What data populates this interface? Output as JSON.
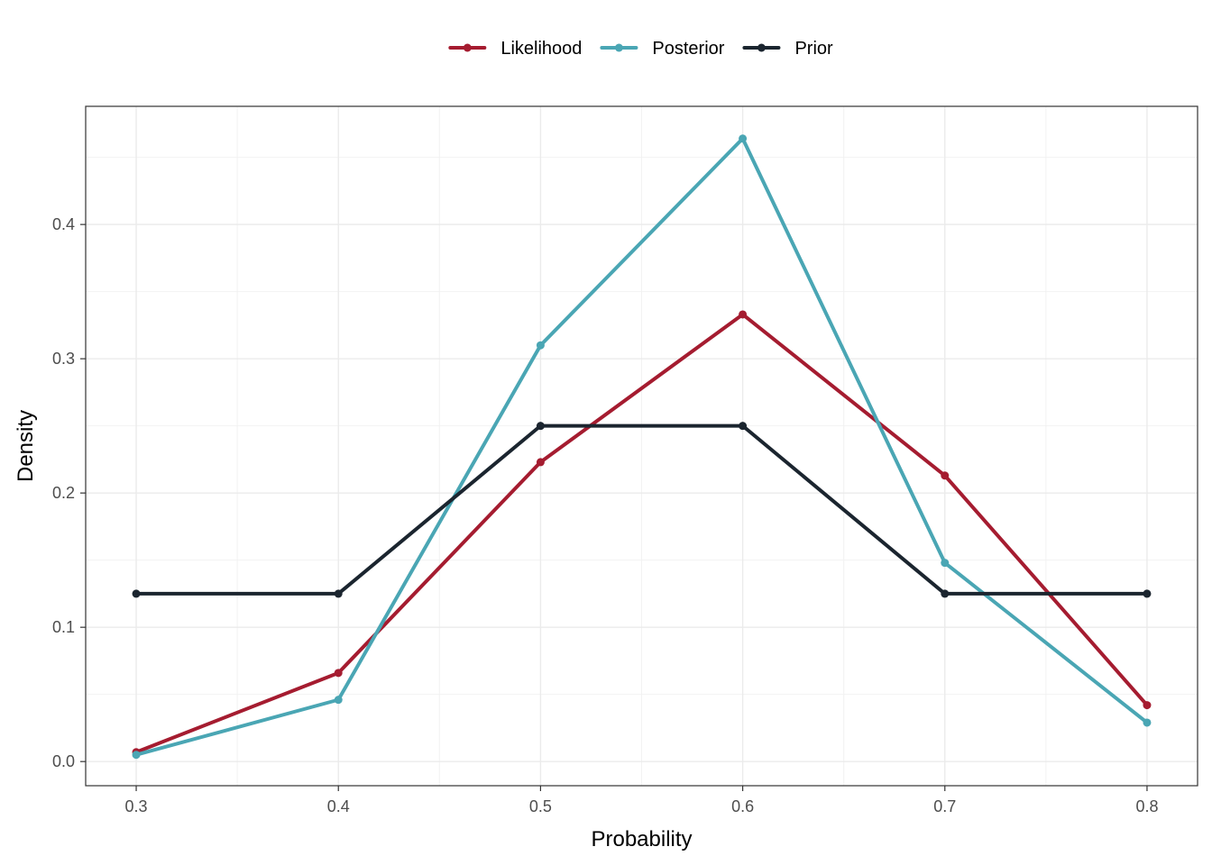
{
  "chart_data": {
    "type": "line",
    "title": "",
    "xlabel": "Probability",
    "ylabel": "Density",
    "x": [
      0.3,
      0.4,
      0.5,
      0.6,
      0.7,
      0.8
    ],
    "xlim": [
      0.275,
      0.825
    ],
    "ylim": [
      -0.018,
      0.488
    ],
    "x_ticks": [
      "0.3",
      "0.4",
      "0.5",
      "0.6",
      "0.7",
      "0.8"
    ],
    "y_ticks": [
      "0.0",
      "0.1",
      "0.2",
      "0.3",
      "0.4"
    ],
    "grid": true,
    "legend_position": "top",
    "series": [
      {
        "name": "Likelihood",
        "color": "#A51C30",
        "values": [
          0.007,
          0.066,
          0.223,
          0.333,
          0.213,
          0.042
        ]
      },
      {
        "name": "Posterior",
        "color": "#4AA6B4",
        "values": [
          0.005,
          0.046,
          0.31,
          0.464,
          0.148,
          0.029
        ]
      },
      {
        "name": "Prior",
        "color": "#1B252F",
        "values": [
          0.125,
          0.125,
          0.25,
          0.25,
          0.125,
          0.125
        ]
      }
    ]
  }
}
